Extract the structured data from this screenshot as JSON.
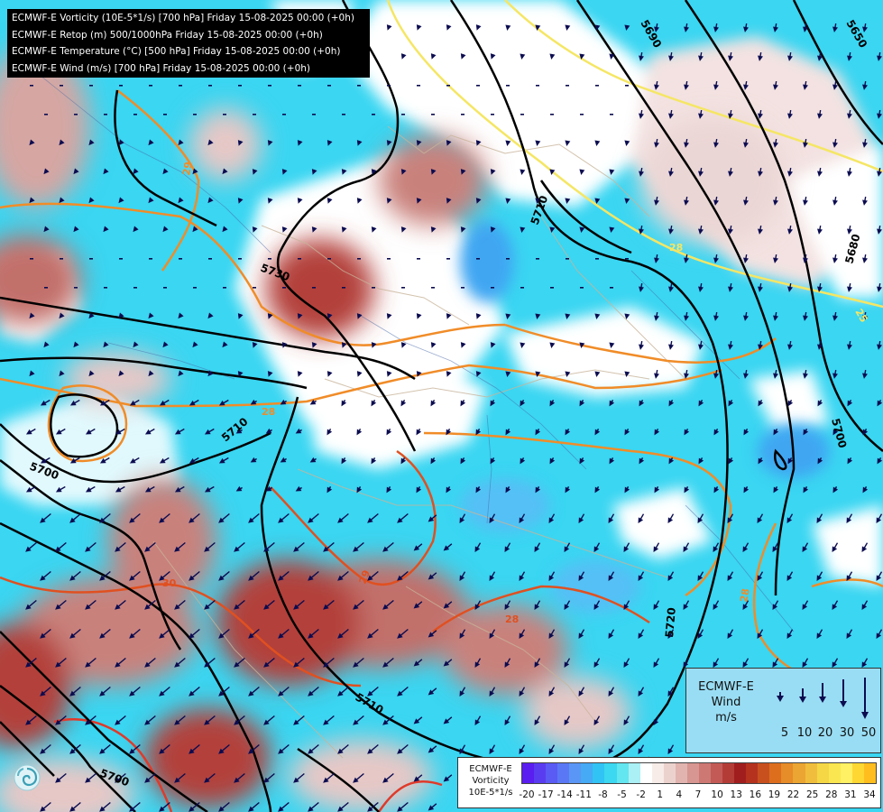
{
  "map": {
    "titles": [
      "ECMWF-E Vorticity (10E-5*1/s) [700 hPa] Friday 15-08-2025 00:00 (+0h)",
      "ECMWF-E Retop (m) 500/1000hPa Friday 15-08-2025 00:00 (+0h)",
      "ECMWF-E Temperature (°C) [500 hPa] Friday 15-08-2025 00:00 (+0h)",
      "ECMWF-E Wind (m/s) [700 hPa] Friday 15-08-2025 00:00 (+0h)"
    ],
    "contour_labels": [
      "5690",
      "5650",
      "5710",
      "5680",
      "5730",
      "5710",
      "5700",
      "5700",
      "5720",
      "5710",
      "5700"
    ],
    "isotherm_labels": [
      "29",
      "28",
      "28",
      "29",
      "30",
      "25",
      "28",
      "28"
    ]
  },
  "wind_legend": {
    "title_lines": [
      "ECMWF-E",
      "Wind",
      "m/s"
    ],
    "values": [
      "5",
      "10",
      "20",
      "30",
      "50"
    ]
  },
  "vorticity_legend": {
    "title_lines": [
      "ECMWF-E",
      "Vorticity",
      "10E-5*1/s"
    ],
    "ticks": [
      "-20",
      "-17",
      "-14",
      "-11",
      "-8",
      "-5",
      "-2",
      "1",
      "4",
      "7",
      "10",
      "13",
      "16",
      "19",
      "22",
      "25",
      "28",
      "31",
      "34"
    ],
    "colors": [
      "#5a1ef0",
      "#5a3cf0",
      "#5a5af5",
      "#5a78f5",
      "#5a96f5",
      "#46aaf5",
      "#32c3f5",
      "#3cd7f0",
      "#64e6f0",
      "#aaf0f5",
      "#ffffff",
      "#f7ece8",
      "#ecd2cd",
      "#e1b4af",
      "#d79691",
      "#cd7873",
      "#c35a55",
      "#b43c37",
      "#a01e1e",
      "#b4321e",
      "#c8501e",
      "#dc6e1e",
      "#e68c28",
      "#eba532",
      "#f0be3c",
      "#f5d746",
      "#fae650",
      "#fff064",
      "#ffd732",
      "#ffbe1e"
    ]
  },
  "colors": {
    "vort_negative": "#3ad6f2",
    "vort_negative_strong": "#41a6f2",
    "vort_positive_light": "#e6c8c6",
    "vort_positive": "#c9817c",
    "vort_positive_strong": "#b3403a",
    "geopotential": "#000000",
    "isotherm_warm": "#f08c28",
    "isotherm_hot": "#e05020",
    "isotherm_cool": "#f5e664",
    "wind_arrow": "#0c0c50"
  },
  "icons": {
    "logo": "swirl-logo-icon",
    "wind_arrow": "arrow-down-icon"
  }
}
